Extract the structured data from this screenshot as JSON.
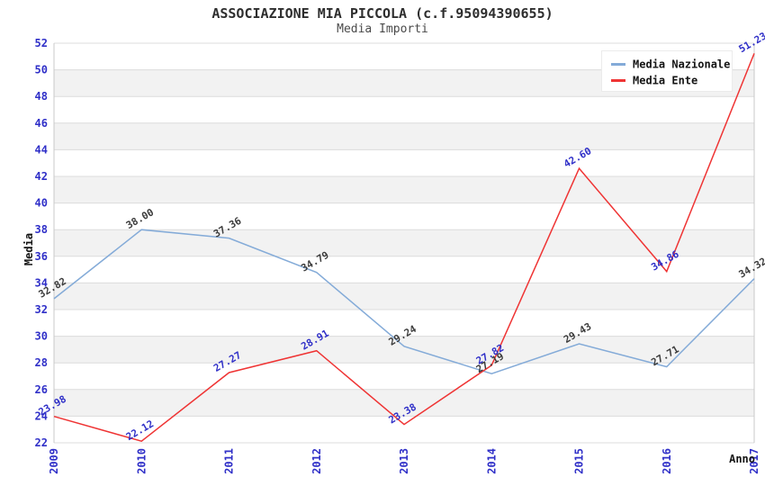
{
  "title": "ASSOCIAZIONE MIA PICCOLA (c.f.95094390655)",
  "subtitle": "Media Importi",
  "chart_data": {
    "type": "line",
    "categories": [
      "2009",
      "2010",
      "2011",
      "2012",
      "2013",
      "2014",
      "2015",
      "2016",
      "2017"
    ],
    "series": [
      {
        "name": "Media Nazionale",
        "color": "#84abd8",
        "label_color": "#3c3c3c",
        "values": [
          32.82,
          38.0,
          37.36,
          34.79,
          29.24,
          27.19,
          29.43,
          27.71,
          34.32
        ]
      },
      {
        "name": "Media Ente",
        "color": "#ef3434",
        "label_color": "#3030c8",
        "values": [
          23.98,
          22.12,
          27.27,
          28.91,
          23.38,
          27.82,
          42.6,
          34.86,
          51.23
        ]
      }
    ],
    "xlabel": "Anno",
    "ylabel": "Media",
    "ylim": [
      22,
      52
    ],
    "ytick_step": 2,
    "yticks": [
      22,
      24,
      26,
      28,
      30,
      32,
      34,
      36,
      38,
      40,
      42,
      44,
      46,
      48,
      50,
      52
    ],
    "grid": true,
    "legend_position": "top-right",
    "axis_tick_color": "#3030c8",
    "band_colors": [
      "#ffffff",
      "#f2f2f2"
    ],
    "gridline_color": "#dcdcdc",
    "plot_border_color": "#c8c8c8"
  }
}
